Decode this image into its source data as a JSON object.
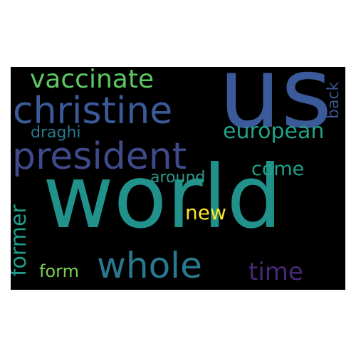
{
  "words": [
    {
      "text": "us",
      "color": "#3b5a9a"
    },
    {
      "text": "world",
      "color": "#21918c"
    },
    {
      "text": "christine",
      "color": "#3b5a9a"
    },
    {
      "text": "president",
      "color": "#3e4a89"
    },
    {
      "text": "vaccinate",
      "color": "#5cc863"
    },
    {
      "text": "whole",
      "color": "#2a788e"
    },
    {
      "text": "european",
      "color": "#20a386"
    },
    {
      "text": "time",
      "color": "#482878"
    },
    {
      "text": "former",
      "color": "#1f9e89"
    },
    {
      "text": "come",
      "color": "#1fa187"
    },
    {
      "text": "new",
      "color": "#fde725"
    },
    {
      "text": "around",
      "color": "#2c9a8a"
    },
    {
      "text": "draghi",
      "color": "#2a788e"
    },
    {
      "text": "back",
      "color": "#3b528b"
    },
    {
      "text": "form",
      "color": "#7ad151"
    }
  ]
}
